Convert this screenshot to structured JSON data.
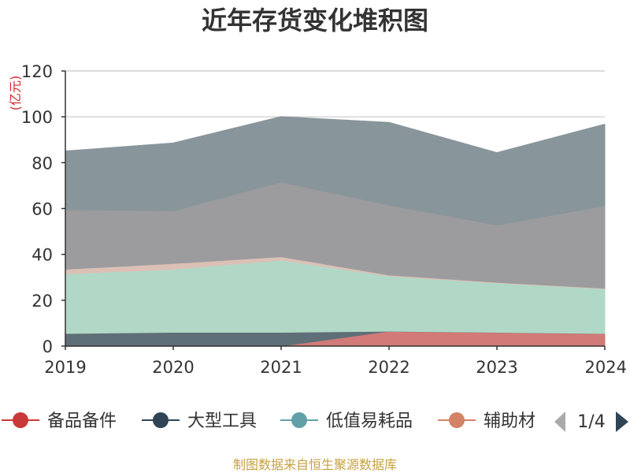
{
  "chart_data": {
    "type": "area",
    "stacked": true,
    "title": "近年存货变化堆积图",
    "y_unit": "(亿元)",
    "x": [
      "2019",
      "2020",
      "2021",
      "2022",
      "2023",
      "2024"
    ],
    "ylim": [
      0,
      120
    ],
    "yticks": [
      0,
      20,
      40,
      60,
      80,
      100,
      120
    ],
    "grid": true,
    "series": [
      {
        "name": "备品备件",
        "color": "#d27a78",
        "values": [
          0,
          0,
          0,
          6.5,
          6.0,
          5.5
        ]
      },
      {
        "name": "大型工具",
        "color": "#5e6f78",
        "values": [
          5.5,
          6.0,
          6.0,
          0,
          0,
          0
        ]
      },
      {
        "name": "低值易耗品",
        "color": "#b1d8c6",
        "values": [
          26,
          27.5,
          31.5,
          24,
          21.5,
          19.5
        ]
      },
      {
        "name": "辅助材料",
        "color": "#dcc0b6",
        "values": [
          2.0,
          2.5,
          1.5,
          0.5,
          0.3,
          0.2
        ]
      },
      {
        "name": "",
        "color": "#9c9c9e",
        "values": [
          26,
          23,
          32.5,
          30.5,
          25,
          36
        ]
      },
      {
        "name": "",
        "color": "#88959a",
        "values": [
          25.5,
          29.5,
          28.5,
          36,
          31.5,
          35.5
        ]
      }
    ]
  },
  "legend": {
    "items": [
      {
        "label": "备品备件",
        "color": "#c9393a"
      },
      {
        "label": "大型工具",
        "color": "#2f4556"
      },
      {
        "label": "低值易耗品",
        "color": "#61a0a8"
      },
      {
        "label": "辅助材",
        "color": "#d48265"
      }
    ],
    "page": "1/4"
  },
  "footer": {
    "source": "制图数据来自恒生聚源数据库"
  }
}
